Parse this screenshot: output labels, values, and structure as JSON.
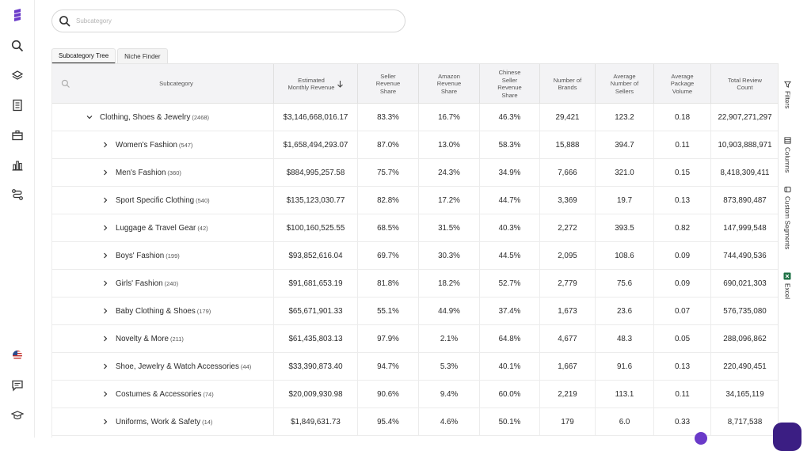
{
  "search": {
    "placeholder": "Subcategory"
  },
  "tabs": [
    {
      "label": "Subcategory Tree",
      "active": true
    },
    {
      "label": "Niche Finder",
      "active": false
    }
  ],
  "columns": {
    "subcategory": "Subcategory",
    "estimated_monthly_revenue": "Estimated Monthly Revenue",
    "seller_revenue_share": "Seller Revenue Share",
    "amazon_revenue_share": "Amazon Revenue Share",
    "chinese_seller_revenue_share": "Chinese Seller Revenue Share",
    "number_of_brands": "Number of Brands",
    "average_number_of_sellers": "Average Number of Sellers",
    "average_package_volume": "Average Package Volume",
    "total_review_count": "Total Review Count"
  },
  "rows": [
    {
      "name": "Clothing, Shoes & Jewelry",
      "count": "(2468)",
      "revenue": "$3,146,668,016.17",
      "seller": "83.3%",
      "amazon": "16.7%",
      "chinese": "46.3%",
      "brands": "29,421",
      "sellers": "123.2",
      "volume": "0.18",
      "reviews": "22,907,271,297",
      "expanded": true
    },
    {
      "name": "Women's Fashion",
      "count": "(547)",
      "revenue": "$1,658,494,293.07",
      "seller": "87.0%",
      "amazon": "13.0%",
      "chinese": "58.3%",
      "brands": "15,888",
      "sellers": "394.7",
      "volume": "0.11",
      "reviews": "10,903,888,971"
    },
    {
      "name": "Men's Fashion",
      "count": "(360)",
      "revenue": "$884,995,257.58",
      "seller": "75.7%",
      "amazon": "24.3%",
      "chinese": "34.9%",
      "brands": "7,666",
      "sellers": "321.0",
      "volume": "0.15",
      "reviews": "8,418,309,411"
    },
    {
      "name": "Sport Specific Clothing",
      "count": "(540)",
      "revenue": "$135,123,030.77",
      "seller": "82.8%",
      "amazon": "17.2%",
      "chinese": "44.7%",
      "brands": "3,369",
      "sellers": "19.7",
      "volume": "0.13",
      "reviews": "873,890,487"
    },
    {
      "name": "Luggage & Travel Gear",
      "count": "(42)",
      "revenue": "$100,160,525.55",
      "seller": "68.5%",
      "amazon": "31.5%",
      "chinese": "40.3%",
      "brands": "2,272",
      "sellers": "393.5",
      "volume": "0.82",
      "reviews": "147,999,548"
    },
    {
      "name": "Boys' Fashion",
      "count": "(199)",
      "revenue": "$93,852,616.04",
      "seller": "69.7%",
      "amazon": "30.3%",
      "chinese": "44.5%",
      "brands": "2,095",
      "sellers": "108.6",
      "volume": "0.09",
      "reviews": "744,490,536"
    },
    {
      "name": "Girls' Fashion",
      "count": "(240)",
      "revenue": "$91,681,653.19",
      "seller": "81.8%",
      "amazon": "18.2%",
      "chinese": "52.7%",
      "brands": "2,779",
      "sellers": "75.6",
      "volume": "0.09",
      "reviews": "690,021,303"
    },
    {
      "name": "Baby Clothing & Shoes",
      "count": "(179)",
      "revenue": "$65,671,901.33",
      "seller": "55.1%",
      "amazon": "44.9%",
      "chinese": "37.4%",
      "brands": "1,673",
      "sellers": "23.6",
      "volume": "0.07",
      "reviews": "576,735,080"
    },
    {
      "name": "Novelty & More",
      "count": "(211)",
      "revenue": "$61,435,803.13",
      "seller": "97.9%",
      "amazon": "2.1%",
      "chinese": "64.8%",
      "brands": "4,677",
      "sellers": "48.3",
      "volume": "0.05",
      "reviews": "288,096,862"
    },
    {
      "name": "Shoe, Jewelry & Watch Accessories",
      "count": "(44)",
      "revenue": "$33,390,873.40",
      "seller": "94.7%",
      "amazon": "5.3%",
      "chinese": "40.1%",
      "brands": "1,667",
      "sellers": "91.6",
      "volume": "0.13",
      "reviews": "220,490,451"
    },
    {
      "name": "Costumes & Accessories",
      "count": "(74)",
      "revenue": "$20,009,930.98",
      "seller": "90.6%",
      "amazon": "9.4%",
      "chinese": "60.0%",
      "brands": "2,219",
      "sellers": "113.1",
      "volume": "0.11",
      "reviews": "34,165,119"
    },
    {
      "name": "Uniforms, Work & Safety",
      "count": "(14)",
      "revenue": "$1,849,631.73",
      "seller": "95.4%",
      "amazon": "4.6%",
      "chinese": "50.1%",
      "brands": "179",
      "sellers": "6.0",
      "volume": "0.33",
      "reviews": "8,717,538"
    }
  ],
  "side_panel": {
    "filters": "Filters",
    "columns": "Columns",
    "custom_segments": "Custom Segments",
    "excel": "Excel"
  },
  "colors": {
    "brand": "#6a3ac9",
    "chat": "#3b1e83",
    "excel": "#1e7145"
  },
  "sidebar_icons": [
    "logo-icon",
    "search-icon",
    "layers-icon",
    "document-icon",
    "briefcase-icon",
    "bar-chart-icon",
    "route-icon",
    "us-flag-icon",
    "chat-icon",
    "graduation-cap-icon"
  ]
}
